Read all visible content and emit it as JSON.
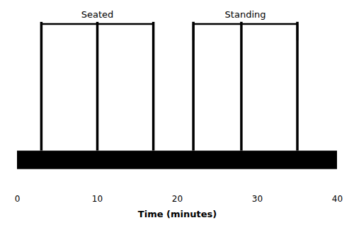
{
  "chart_data": {
    "type": "timeline",
    "xlabel": "Time (minutes)",
    "xlim": [
      0,
      40
    ],
    "xticks": [
      0,
      10,
      20,
      30,
      40
    ],
    "series": [
      {
        "name": "Seated",
        "values": [
          3,
          10,
          17
        ]
      },
      {
        "name": "Standing",
        "values": [
          22,
          28,
          35
        ]
      }
    ],
    "color": "#000000",
    "tick_labels": "x"
  }
}
